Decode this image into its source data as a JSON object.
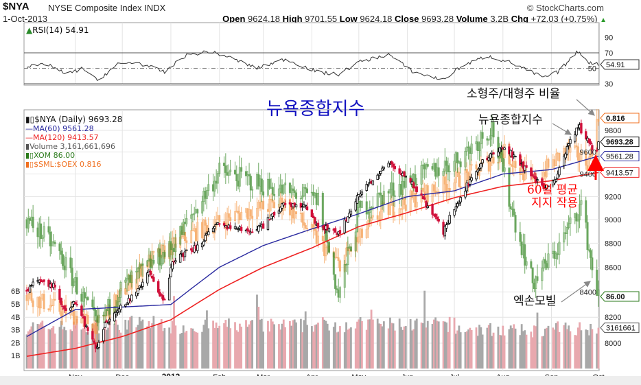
{
  "header": {
    "symbol": "$NYA",
    "name": "NYSE Composite Index",
    "exchange": "INDX",
    "copyright": "© StockCharts.com",
    "date": "1-Oct-2013",
    "open_label": "Open",
    "open": "9624.18",
    "high_label": "High",
    "high": "9701.55",
    "low_label": "Low",
    "low": "9624.18",
    "close_label": "Close",
    "close": "9693.28",
    "volume_label": "Volume",
    "volume": "3.2B",
    "chg_label": "Chg",
    "chg": "+72.03 (+0.75%)",
    "chg_arrow": "▲"
  },
  "rsi": {
    "label": "RSI(14) 54.91",
    "value_tag": "54.91",
    "ticks": [
      "90",
      "70",
      "50",
      "30"
    ]
  },
  "legend": {
    "nya": "$NYA (Daily) 9693.28",
    "ma60": "MA(60) 9561.28",
    "ma120": "MA(120) 9413.57",
    "volume": "Volume 3,161,661,696",
    "xom": "XOM  86.00",
    "sml": "$SML:$OEX  0.816"
  },
  "tags": {
    "sml": "0.816",
    "nya": "9693.28",
    "ma60": "9561.28",
    "ma120": "9413.57",
    "xom": "86.00",
    "volume": "3161661"
  },
  "annotations": {
    "title": "뉴욕종합지수",
    "ratio": "소형주/대형주 비율",
    "index": "뉴욕종합지수",
    "xom": "엑손모빌",
    "support_1": "60일 평균",
    "support_2": "지지 작용"
  },
  "colors": {
    "nya_up": "#000000",
    "nya_down": "#d0103a",
    "ma60": "#2a2aa0",
    "ma120": "#ee2222",
    "xom": "#3a8a2a",
    "sml": "#f59a4a",
    "vol_up": "#a8a8a8",
    "vol_down": "#e8a8ae",
    "annotation_red": "#ff0000",
    "title_blue": "#1010c0"
  },
  "chart_data": {
    "type": "candlestick",
    "title": "$NYA NYSE Composite Index",
    "x_range": [
      "2012-10-01",
      "2013-10-01"
    ],
    "x_ticks": [
      [
        "Nov",
        "2012-11-01"
      ],
      [
        "Dec",
        "2012-12-01"
      ],
      [
        "2013",
        "2013-01-01"
      ],
      [
        "Feb",
        "2013-02-01"
      ],
      [
        "Mar",
        "2013-03-01"
      ],
      [
        "Apr",
        "2013-04-01"
      ],
      [
        "May",
        "2013-05-01"
      ],
      [
        "Jun",
        "2013-06-01"
      ],
      [
        "Jul",
        "2013-07-01"
      ],
      [
        "Aug",
        "2013-08-01"
      ],
      [
        "Sep",
        "2013-09-01"
      ],
      [
        "Oct",
        "2013-10-01"
      ]
    ],
    "price_axis": {
      "scale": "log",
      "ticks": [
        "9800",
        "9600",
        "9400",
        "9200",
        "9000",
        "8800",
        "8600",
        "8400",
        "8200",
        "8000"
      ]
    },
    "volume_axis": {
      "ticks": [
        "6B",
        "5B",
        "4B",
        "3B",
        "2B",
        "1B"
      ]
    },
    "nya": [
      [
        "2012-10-01",
        8400
      ],
      [
        "2012-10-05",
        8480
      ],
      [
        "2012-10-18",
        8450
      ],
      [
        "2012-10-25",
        8250
      ],
      [
        "2012-11-01",
        8330
      ],
      [
        "2012-11-07",
        8150
      ],
      [
        "2012-11-15",
        7960
      ],
      [
        "2012-11-20",
        8150
      ],
      [
        "2012-11-30",
        8300
      ],
      [
        "2012-12-07",
        8350
      ],
      [
        "2012-12-18",
        8550
      ],
      [
        "2012-12-28",
        8320
      ],
      [
        "2013-01-02",
        8650
      ],
      [
        "2013-01-15",
        8750
      ],
      [
        "2013-01-31",
        8950
      ],
      [
        "2013-02-20",
        8900
      ],
      [
        "2013-03-01",
        8950
      ],
      [
        "2013-03-15",
        9150
      ],
      [
        "2013-03-28",
        9100
      ],
      [
        "2013-04-05",
        8950
      ],
      [
        "2013-04-18",
        8880
      ],
      [
        "2013-04-30",
        9200
      ],
      [
        "2013-05-21",
        9500
      ],
      [
        "2013-06-05",
        9300
      ],
      [
        "2013-06-24",
        8900
      ],
      [
        "2013-07-01",
        9100
      ],
      [
        "2013-07-15",
        9450
      ],
      [
        "2013-07-26",
        9600
      ],
      [
        "2013-08-02",
        9650
      ],
      [
        "2013-08-15",
        9450
      ],
      [
        "2013-08-27",
        9280
      ],
      [
        "2013-09-04",
        9350
      ],
      [
        "2013-09-10",
        9600
      ],
      [
        "2013-09-18",
        9850
      ],
      [
        "2013-09-20",
        9800
      ],
      [
        "2013-09-26",
        9650
      ],
      [
        "2013-09-30",
        9620
      ],
      [
        "2013-10-01",
        9693.28
      ]
    ],
    "ma60": [
      [
        "2012-10-01",
        8050
      ],
      [
        "2012-11-01",
        8260
      ],
      [
        "2012-12-01",
        8280
      ],
      [
        "2013-01-01",
        8300
      ],
      [
        "2013-02-01",
        8600
      ],
      [
        "2013-03-01",
        8780
      ],
      [
        "2013-04-01",
        8920
      ],
      [
        "2013-05-01",
        9050
      ],
      [
        "2013-06-01",
        9200
      ],
      [
        "2013-07-01",
        9250
      ],
      [
        "2013-08-01",
        9400
      ],
      [
        "2013-09-01",
        9440
      ],
      [
        "2013-10-01",
        9561.28
      ]
    ],
    "ma120": [
      [
        "2012-10-01",
        7900
      ],
      [
        "2012-11-01",
        7960
      ],
      [
        "2012-12-01",
        8050
      ],
      [
        "2013-01-01",
        8180
      ],
      [
        "2013-02-01",
        8420
      ],
      [
        "2013-03-01",
        8600
      ],
      [
        "2013-04-01",
        8760
      ],
      [
        "2013-05-01",
        8940
      ],
      [
        "2013-06-01",
        9060
      ],
      [
        "2013-07-01",
        9190
      ],
      [
        "2013-08-01",
        9290
      ],
      [
        "2013-09-01",
        9340
      ],
      [
        "2013-10-01",
        9413.57
      ]
    ],
    "xom": [
      [
        "2012-10-01",
        90.0
      ],
      [
        "2012-10-20",
        88.5
      ],
      [
        "2012-11-15",
        84.5
      ],
      [
        "2012-12-01",
        86.5
      ],
      [
        "2013-01-01",
        88.5
      ],
      [
        "2013-02-01",
        92.5
      ],
      [
        "2013-03-01",
        91.8
      ],
      [
        "2013-04-05",
        91.0
      ],
      [
        "2013-04-18",
        86.0
      ],
      [
        "2013-05-01",
        90.5
      ],
      [
        "2013-06-01",
        92.0
      ],
      [
        "2013-07-01",
        93.0
      ],
      [
        "2013-07-25",
        94.8
      ],
      [
        "2013-08-10",
        89.5
      ],
      [
        "2013-08-20",
        86.7
      ],
      [
        "2013-09-05",
        88.5
      ],
      [
        "2013-09-20",
        90.8
      ],
      [
        "2013-09-27",
        87.5
      ],
      [
        "2013-10-01",
        86.0
      ]
    ],
    "sml_oex": [
      [
        "2012-10-01",
        0.73
      ],
      [
        "2012-11-15",
        0.715
      ],
      [
        "2012-12-15",
        0.745
      ],
      [
        "2013-01-15",
        0.76
      ],
      [
        "2013-02-15",
        0.77
      ],
      [
        "2013-03-15",
        0.775
      ],
      [
        "2013-04-18",
        0.745
      ],
      [
        "2013-05-15",
        0.77
      ],
      [
        "2013-06-15",
        0.78
      ],
      [
        "2013-07-15",
        0.79
      ],
      [
        "2013-08-01",
        0.8
      ],
      [
        "2013-08-20",
        0.785
      ],
      [
        "2013-09-10",
        0.8
      ],
      [
        "2013-09-25",
        0.795
      ],
      [
        "2013-10-01",
        0.816
      ]
    ],
    "volume_monthly_avg_billions": [
      3.3,
      3.4,
      3.6,
      3.3,
      3.4,
      3.4,
      3.5,
      3.5,
      3.5,
      3.1,
      3.0,
      3.2,
      3.16
    ],
    "rsi14": [
      [
        "2012-10-01",
        52
      ],
      [
        "2012-10-15",
        55
      ],
      [
        "2012-10-26",
        42
      ],
      [
        "2012-11-06",
        50
      ],
      [
        "2012-11-15",
        34
      ],
      [
        "2012-11-28",
        55
      ],
      [
        "2012-12-10",
        58
      ],
      [
        "2012-12-28",
        45
      ],
      [
        "2013-01-10",
        66
      ],
      [
        "2013-01-25",
        72
      ],
      [
        "2013-02-05",
        66
      ],
      [
        "2013-02-25",
        50
      ],
      [
        "2013-03-15",
        62
      ],
      [
        "2013-04-05",
        45
      ],
      [
        "2013-04-18",
        42
      ],
      [
        "2013-05-01",
        58
      ],
      [
        "2013-05-20",
        68
      ],
      [
        "2013-06-05",
        45
      ],
      [
        "2013-06-24",
        35
      ],
      [
        "2013-07-05",
        52
      ],
      [
        "2013-07-22",
        66
      ],
      [
        "2013-08-05",
        58
      ],
      [
        "2013-08-27",
        38
      ],
      [
        "2013-09-05",
        45
      ],
      [
        "2013-09-18",
        72
      ],
      [
        "2013-09-25",
        58
      ],
      [
        "2013-10-01",
        54.91
      ]
    ]
  }
}
